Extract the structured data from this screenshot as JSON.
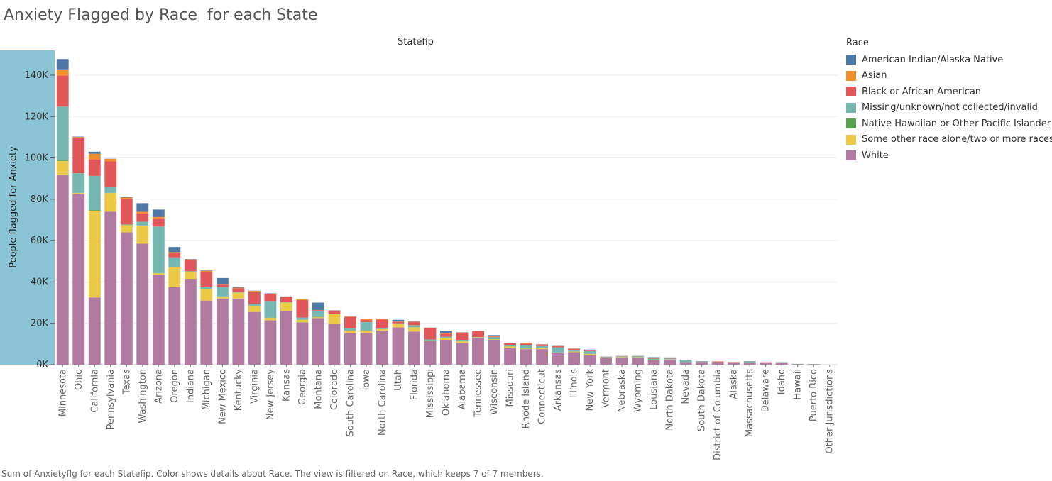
{
  "title": "Anxiety Flagged by Race  for each State",
  "footer": "Sum of Anxietyflg for each Statefip.  Color shows details about Race. The view is filtered on Race, which keeps 7 of 7 members.",
  "legend": {
    "title": "Race",
    "items": [
      {
        "label": "American Indian/Alaska Native",
        "color": "#4e79a7"
      },
      {
        "label": "Asian",
        "color": "#f28e2b"
      },
      {
        "label": "Black or African American",
        "color": "#e15759"
      },
      {
        "label": "Missing/unknown/not collected/invalid",
        "color": "#76b7b2"
      },
      {
        "label": "Native Hawaiian or Other Pacific Islander",
        "color": "#59a14f"
      },
      {
        "label": "Some other race alone/two or more races",
        "color": "#edc948"
      },
      {
        "label": "White",
        "color": "#b07aa1"
      }
    ]
  },
  "chart_data": {
    "type": "bar",
    "stacked": true,
    "title": "Anxiety Flagged by Race  for each State",
    "xlabel": "Statefip",
    "ylabel": "People flagged for Anxiety",
    "ylim": [
      0,
      152000
    ],
    "yticks": [
      0,
      20000,
      40000,
      60000,
      80000,
      100000,
      120000,
      140000
    ],
    "ytick_labels": [
      "0K",
      "20K",
      "40K",
      "60K",
      "80K",
      "100K",
      "120K",
      "140K"
    ],
    "grid": true,
    "legend_position": "right",
    "categories": [
      "Minnesota",
      "Ohio",
      "California",
      "Pennsylvania",
      "Texas",
      "Washington",
      "Arizona",
      "Oregon",
      "Indiana",
      "Michigan",
      "New Mexico",
      "Kentucky",
      "Virginia",
      "New Jersey",
      "Kansas",
      "Georgia",
      "Montana",
      "Colorado",
      "South Carolina",
      "Iowa",
      "North Carolina",
      "Utah",
      "Florida",
      "Mississippi",
      "Oklahoma",
      "Alabama",
      "Tennessee",
      "Wisconsin",
      "Missouri",
      "Rhode Island",
      "Connecticut",
      "Arkansas",
      "Illinois",
      "New York",
      "Vermont",
      "Nebraska",
      "Wyoming",
      "Lousiana",
      "North Dakota",
      "Nevada",
      "South Dakota",
      "District of Columbia",
      "Alaska",
      "Massachusetts",
      "Delaware",
      "Idaho",
      "Hawaii",
      "Puerto Rico",
      "Other Jurisdictions"
    ],
    "series": [
      {
        "name": "White",
        "values": [
          92000,
          82500,
          32500,
          74000,
          64000,
          58500,
          43500,
          37500,
          41500,
          31000,
          32000,
          32000,
          25500,
          21500,
          26000,
          20500,
          22500,
          19800,
          15200,
          15500,
          16500,
          18000,
          16000,
          11500,
          12000,
          10500,
          13000,
          12000,
          8000,
          7500,
          7500,
          5500,
          6000,
          4800,
          3200,
          3500,
          3500,
          2300,
          2500,
          1200,
          1200,
          900,
          900,
          700,
          700,
          700,
          200,
          200,
          0
        ]
      },
      {
        "name": "Some other race alone/two or more races",
        "values": [
          6500,
          500,
          42000,
          9000,
          3500,
          8500,
          700,
          9500,
          3500,
          5500,
          800,
          2800,
          3000,
          1200,
          4000,
          1200,
          400,
          4500,
          1300,
          1000,
          700,
          1800,
          2000,
          200,
          800,
          800,
          200,
          200,
          800,
          300,
          400,
          300,
          300,
          300,
          100,
          100,
          100,
          100,
          100,
          0,
          0,
          0,
          0,
          0,
          0,
          0,
          0,
          0,
          0
        ]
      },
      {
        "name": "Native Hawaiian or Other Pacific Islander",
        "values": [
          300,
          100,
          300,
          100,
          100,
          300,
          100,
          100,
          100,
          100,
          200,
          100,
          100,
          100,
          100,
          100,
          100,
          100,
          100,
          100,
          100,
          100,
          100,
          100,
          100,
          100,
          100,
          100,
          100,
          100,
          100,
          100,
          100,
          100,
          100,
          100,
          100,
          100,
          100,
          100,
          100,
          100,
          100,
          100,
          100,
          100,
          100,
          0,
          0
        ]
      },
      {
        "name": "Missing/unknown/not collected/invalid",
        "values": [
          26000,
          9500,
          16500,
          2700,
          200,
          1800,
          22500,
          4800,
          100,
          800,
          4500,
          200,
          600,
          8000,
          200,
          1000,
          3000,
          200,
          1000,
          4000,
          500,
          100,
          1000,
          400,
          600,
          600,
          100,
          1000,
          600,
          1400,
          1000,
          2500,
          800,
          1300,
          200,
          200,
          300,
          400,
          300,
          800,
          200,
          200,
          100,
          700,
          300,
          200,
          100,
          100,
          0
        ]
      },
      {
        "name": "Black or African American",
        "values": [
          15000,
          17000,
          8000,
          12500,
          12500,
          4000,
          4000,
          2000,
          5500,
          7500,
          1200,
          1800,
          6200,
          3200,
          2300,
          8500,
          300,
          1200,
          5500,
          1000,
          4000,
          600,
          1500,
          5500,
          1400,
          3500,
          2800,
          300,
          800,
          800,
          700,
          500,
          400,
          200,
          100,
          100,
          100,
          400,
          300,
          100,
          100,
          300,
          100,
          100,
          100,
          100,
          0,
          0,
          0
        ]
      },
      {
        "name": "Asian",
        "values": [
          3000,
          500,
          2700,
          1200,
          500,
          800,
          600,
          500,
          200,
          500,
          400,
          300,
          300,
          300,
          200,
          300,
          100,
          400,
          200,
          500,
          200,
          200,
          200,
          100,
          300,
          100,
          100,
          300,
          100,
          200,
          100,
          100,
          100,
          100,
          100,
          100,
          0,
          100,
          0,
          0,
          0,
          100,
          100,
          0,
          0,
          0,
          0,
          0,
          0
        ]
      },
      {
        "name": "American Indian/Alaska Native",
        "values": [
          5000,
          200,
          1000,
          100,
          200,
          4200,
          3600,
          2500,
          200,
          200,
          2800,
          200,
          100,
          200,
          200,
          100,
          3600,
          100,
          100,
          100,
          100,
          900,
          100,
          100,
          1200,
          100,
          100,
          400,
          100,
          100,
          100,
          100,
          100,
          500,
          100,
          100,
          100,
          200,
          200,
          200,
          100,
          0,
          0,
          100,
          0,
          100,
          0,
          0,
          0
        ]
      }
    ]
  }
}
